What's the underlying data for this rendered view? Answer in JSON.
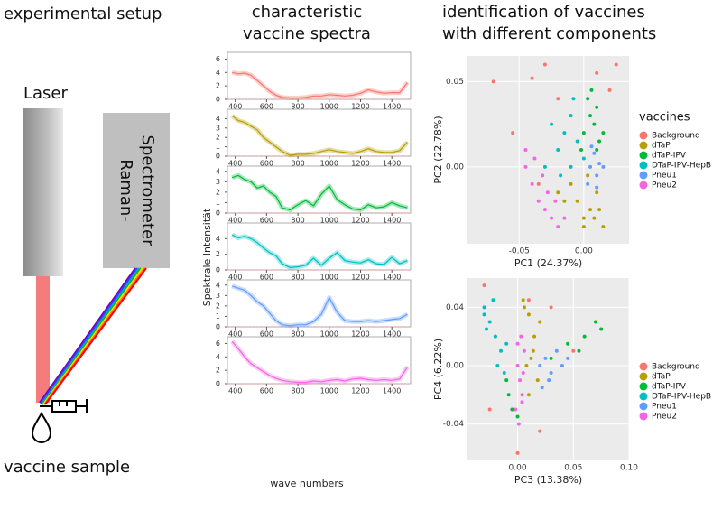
{
  "header": {
    "setup_title": "experimental setup",
    "spectra_title": [
      "characteristic",
      "vaccine spectra"
    ],
    "pca_title": [
      "identification of vaccines",
      "with different components"
    ]
  },
  "setup": {
    "laser": "Laser",
    "spectrometer": [
      "Raman-",
      "Spectrometer"
    ],
    "sample": "vaccine sample"
  },
  "spectra_axes": {
    "y_label": "Spektrale Intensität",
    "x_label": "wave numbers"
  },
  "chart_data": [
    {
      "type": "line",
      "color": "#f8766d",
      "x": [
        380,
        420,
        460,
        500,
        540,
        580,
        620,
        660,
        700,
        750,
        800,
        850,
        900,
        950,
        1000,
        1050,
        1100,
        1150,
        1200,
        1250,
        1300,
        1350,
        1400,
        1450,
        1500
      ],
      "values": [
        4,
        3.8,
        3.9,
        3.6,
        2.8,
        2,
        1.2,
        0.6,
        0.3,
        0.2,
        0.2,
        0.3,
        0.5,
        0.5,
        0.7,
        0.6,
        0.5,
        0.6,
        0.9,
        1.4,
        1.1,
        0.9,
        1,
        1,
        2.5
      ],
      "xlim": [
        350,
        1520
      ],
      "xticks": [
        400,
        600,
        800,
        1000,
        1200,
        1400
      ],
      "ylim": [
        0,
        7
      ],
      "yticks": [
        0,
        2,
        4,
        6
      ]
    },
    {
      "type": "line",
      "color": "#b79f00",
      "x": [
        380,
        420,
        460,
        500,
        540,
        580,
        620,
        660,
        700,
        750,
        800,
        850,
        900,
        950,
        1000,
        1050,
        1100,
        1150,
        1200,
        1250,
        1300,
        1350,
        1400,
        1450,
        1500
      ],
      "values": [
        4.3,
        3.8,
        3.6,
        3.2,
        2.8,
        2,
        1.5,
        1,
        0.5,
        0.1,
        0.2,
        0.2,
        0.3,
        0.5,
        0.7,
        0.5,
        0.4,
        0.3,
        0.5,
        0.8,
        0.5,
        0.4,
        0.4,
        0.6,
        1.5
      ],
      "xlim": [
        350,
        1520
      ],
      "xticks": [
        400,
        600,
        800,
        1000,
        1200,
        1400
      ],
      "ylim": [
        0,
        5
      ],
      "yticks": [
        0,
        1,
        2,
        3,
        4
      ]
    },
    {
      "type": "line",
      "color": "#00ba38",
      "x": [
        380,
        420,
        460,
        500,
        540,
        580,
        620,
        660,
        700,
        750,
        800,
        850,
        900,
        950,
        1000,
        1050,
        1100,
        1150,
        1200,
        1250,
        1300,
        1350,
        1400,
        1450,
        1500
      ],
      "values": [
        3.4,
        3.6,
        3.2,
        3,
        2.4,
        2.6,
        2,
        1.6,
        0.5,
        0.3,
        0.8,
        1.2,
        0.7,
        1.8,
        2.6,
        1.3,
        0.8,
        0.4,
        0.3,
        0.8,
        0.5,
        0.6,
        1,
        0.7,
        0.5
      ],
      "xlim": [
        350,
        1520
      ],
      "xticks": [
        400,
        600,
        800,
        1000,
        1200,
        1400
      ],
      "ylim": [
        0,
        4.5
      ],
      "yticks": [
        0,
        1,
        2,
        3,
        4
      ]
    },
    {
      "type": "line",
      "color": "#00bfc4",
      "x": [
        380,
        420,
        460,
        500,
        540,
        580,
        620,
        660,
        700,
        750,
        800,
        850,
        900,
        950,
        1000,
        1050,
        1100,
        1150,
        1200,
        1250,
        1300,
        1350,
        1400,
        1450,
        1500
      ],
      "values": [
        4.5,
        4.1,
        4.3,
        4,
        3.5,
        2.8,
        2.2,
        1.8,
        0.8,
        0.3,
        0.4,
        0.6,
        1.5,
        0.6,
        1.5,
        2.2,
        1.2,
        1,
        0.9,
        1.3,
        0.8,
        0.7,
        1.6,
        0.8,
        1.2
      ],
      "xlim": [
        350,
        1520
      ],
      "xticks": [
        400,
        600,
        800,
        1000,
        1200,
        1400
      ],
      "ylim": [
        0,
        6
      ],
      "yticks": [
        0,
        2,
        4
      ]
    },
    {
      "type": "line",
      "color": "#619cff",
      "x": [
        380,
        420,
        460,
        500,
        540,
        580,
        620,
        660,
        700,
        750,
        800,
        850,
        900,
        950,
        1000,
        1050,
        1100,
        1150,
        1200,
        1250,
        1300,
        1350,
        1400,
        1450,
        1500
      ],
      "values": [
        3.9,
        3.7,
        3.5,
        3,
        2.4,
        2,
        1.3,
        0.6,
        0.2,
        0.1,
        0.2,
        0.2,
        0.5,
        1.2,
        2.8,
        1.4,
        0.6,
        0.5,
        0.5,
        0.6,
        0.5,
        0.6,
        0.7,
        0.8,
        1.2
      ],
      "xlim": [
        350,
        1520
      ],
      "xticks": [
        400,
        600,
        800,
        1000,
        1200,
        1400
      ],
      "ylim": [
        0,
        4.5
      ],
      "yticks": [
        0,
        1,
        2,
        3,
        4
      ]
    },
    {
      "type": "line",
      "color": "#f564e3",
      "x": [
        380,
        420,
        460,
        500,
        540,
        580,
        620,
        660,
        700,
        750,
        800,
        850,
        900,
        950,
        1000,
        1050,
        1100,
        1150,
        1200,
        1250,
        1300,
        1350,
        1400,
        1450,
        1500
      ],
      "values": [
        6.3,
        5.2,
        4,
        3,
        2.4,
        1.8,
        1.2,
        0.8,
        0.5,
        0.3,
        0.2,
        0.2,
        0.4,
        0.3,
        0.5,
        0.6,
        0.4,
        0.7,
        0.8,
        0.6,
        0.5,
        0.6,
        0.5,
        0.7,
        2.5
      ],
      "xlim": [
        350,
        1520
      ],
      "xticks": [
        400,
        600,
        800,
        1000,
        1200,
        1400
      ],
      "ylim": [
        0,
        7
      ],
      "yticks": [
        0,
        2,
        4,
        6
      ]
    },
    {
      "type": "scatter",
      "x_label": "PC1 (24.37%)",
      "y_label": "PC2 (22.78%)",
      "legend_title": "vaccines",
      "xlim": [
        -0.09,
        0.035
      ],
      "xticks": [
        -0.05,
        {
          "value": 0,
          "label": "0.00"
        }
      ],
      "ylim": [
        -0.045,
        0.065
      ],
      "yticks": [
        {
          "value": 0,
          "label": "0.00"
        },
        0.05
      ],
      "series": [
        {
          "name": "Background",
          "color": "#f8766d",
          "x": [
            -0.07,
            -0.03,
            -0.04,
            0.025,
            0.02,
            -0.02,
            -0.055,
            0.01,
            -0.01,
            -0.035
          ],
          "y": [
            0.05,
            0.06,
            0.052,
            0.06,
            0.045,
            0.04,
            0.02,
            0.055,
            0.03,
            -0.01
          ]
        },
        {
          "name": "dTaP",
          "color": "#b79f00",
          "x": [
            -0.005,
            0,
            0.005,
            0.01,
            -0.01,
            0,
            0.008,
            -0.015,
            0.003,
            0.012,
            -0.02,
            0.015
          ],
          "y": [
            -0.02,
            -0.03,
            -0.025,
            -0.015,
            -0.01,
            -0.035,
            -0.03,
            -0.02,
            -0.005,
            -0.025,
            -0.015,
            -0.035
          ]
        },
        {
          "name": "dTaP-IPV",
          "color": "#00ba38",
          "x": [
            0,
            0.005,
            0.01,
            0.003,
            0.008,
            0.012,
            -0.002,
            0.006,
            0.01,
            0.015
          ],
          "y": [
            0.02,
            0.03,
            0.01,
            0.04,
            0.025,
            0.015,
            0.01,
            0.045,
            0.035,
            0.02
          ]
        },
        {
          "name": "DTaP-IPV-HepB",
          "color": "#00bfc4",
          "x": [
            -0.02,
            -0.015,
            -0.01,
            -0.005,
            -0.025,
            -0.01,
            0,
            -0.018,
            -0.008,
            -0.03
          ],
          "y": [
            0.01,
            0.02,
            0,
            0.015,
            0.025,
            0.03,
            0.005,
            -0.005,
            0.04,
            0
          ]
        },
        {
          "name": "Pneu1",
          "color": "#619cff",
          "x": [
            0.005,
            0.01,
            0.008,
            0.012,
            0.003,
            0.006,
            0.01,
            0.015
          ],
          "y": [
            0,
            -0.005,
            0.008,
            0.002,
            -0.01,
            0.012,
            -0.012,
            0
          ]
        },
        {
          "name": "Pneu2",
          "color": "#f564e3",
          "x": [
            -0.045,
            -0.04,
            -0.035,
            -0.03,
            -0.025,
            -0.02,
            -0.038,
            -0.028,
            -0.032,
            -0.022,
            -0.045,
            -0.015
          ],
          "y": [
            0,
            -0.01,
            -0.02,
            -0.025,
            -0.03,
            -0.035,
            0.005,
            -0.015,
            -0.005,
            -0.02,
            0.01,
            -0.03
          ]
        }
      ]
    },
    {
      "type": "scatter",
      "x_label": "PC3 (13.38%)",
      "y_label": "PC4 (6.22%)",
      "xlim": [
        -0.045,
        0.1
      ],
      "xticks": [
        {
          "value": 0,
          "label": "0.00"
        },
        0.05,
        {
          "value": 0.1,
          "label": "0.10"
        }
      ],
      "ylim": [
        -0.065,
        0.06
      ],
      "yticks": [
        -0.04,
        {
          "value": 0,
          "label": "0.00"
        },
        0.04
      ],
      "series": [
        {
          "name": "Background",
          "color": "#f8766d",
          "x": [
            -0.03,
            -0.02,
            0.01,
            0.03,
            0.05,
            -0.025,
            0,
            0.02
          ],
          "y": [
            0.055,
            0.02,
            0.045,
            0.04,
            0.01,
            -0.03,
            -0.06,
            -0.045
          ]
        },
        {
          "name": "dTaP",
          "color": "#b79f00",
          "x": [
            0.005,
            0.01,
            0.015,
            0.012,
            0.008,
            0.018,
            0.01,
            0.02,
            0.006,
            0.014
          ],
          "y": [
            0.045,
            0.035,
            0.02,
            0.005,
            0,
            -0.01,
            -0.02,
            0.03,
            0.04,
            0.01
          ]
        },
        {
          "name": "dTaP-IPV",
          "color": "#00ba38",
          "x": [
            -0.008,
            -0.005,
            -0.01,
            0,
            0.03,
            0.045,
            0.06,
            0.07,
            0.075,
            0.055
          ],
          "y": [
            -0.02,
            -0.03,
            -0.01,
            -0.035,
            0.005,
            0.015,
            0.02,
            0.03,
            0.025,
            0.01
          ]
        },
        {
          "name": "DTaP-IPV-HepB",
          "color": "#00bfc4",
          "x": [
            -0.03,
            -0.025,
            -0.02,
            -0.015,
            -0.028,
            -0.022,
            -0.018,
            -0.012,
            -0.01,
            -0.03
          ],
          "y": [
            0.04,
            0.03,
            0.02,
            0.01,
            0.025,
            0.045,
            0,
            -0.005,
            0.015,
            0.035
          ]
        },
        {
          "name": "Pneu1",
          "color": "#619cff",
          "x": [
            0.02,
            0.025,
            0.03,
            0.035,
            0.04,
            0.028,
            0.045,
            0.022
          ],
          "y": [
            0,
            0.005,
            -0.005,
            0.01,
            0,
            -0.01,
            0.005,
            -0.015
          ]
        },
        {
          "name": "Pneu2",
          "color": "#f564e3",
          "x": [
            0,
            0.002,
            0.004,
            -0.002,
            0.006,
            0.003,
            0.001,
            0.005,
            0,
            0.004
          ],
          "y": [
            0,
            -0.01,
            -0.02,
            -0.03,
            0.01,
            0.02,
            -0.04,
            -0.005,
            0.015,
            -0.025
          ]
        }
      ]
    }
  ]
}
